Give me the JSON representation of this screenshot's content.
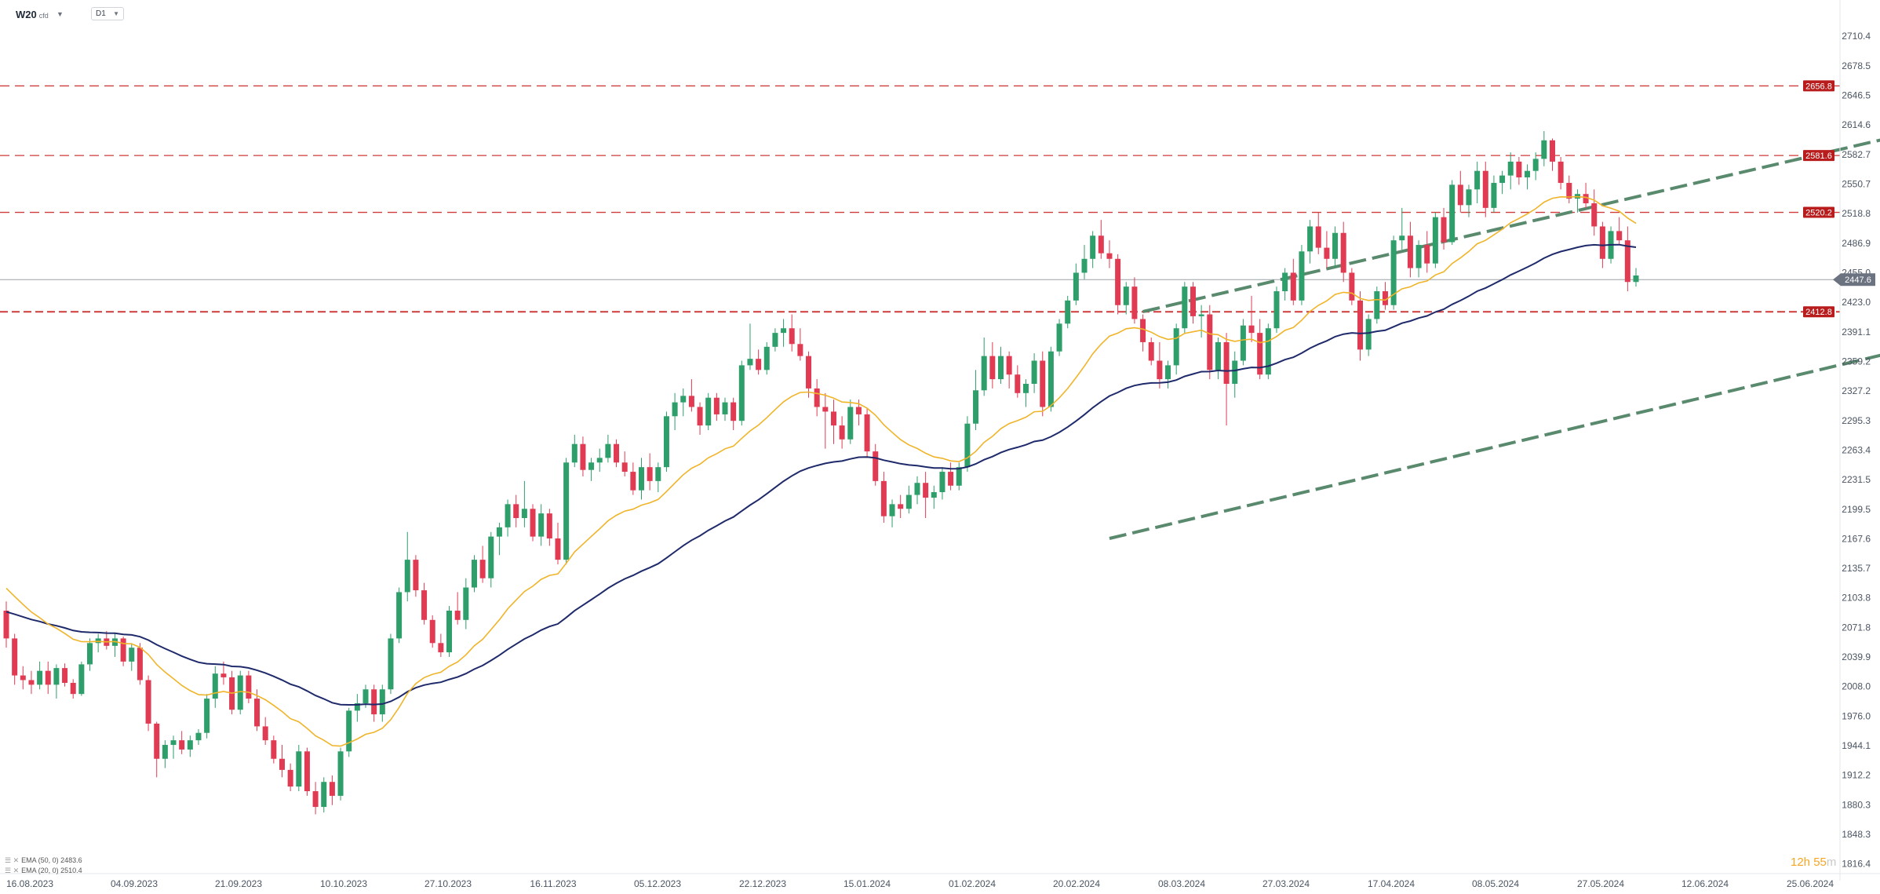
{
  "toolbar": {
    "symbol": "W20",
    "symbol_suffix": "cfd",
    "timeframe": "D1"
  },
  "legend": [
    {
      "label": "EMA (50, 0) 2483.6",
      "color": "#1f2a6b"
    },
    {
      "label": "EMA (20, 0) 2510.4",
      "color": "#f0b429"
    }
  ],
  "timer": {
    "hours": "12h 55",
    "minutes_suffix": "m"
  },
  "chart_data": {
    "type": "candlestick",
    "y_ticks": [
      "2710.4",
      "2678.5",
      "2646.5",
      "2614.6",
      "2582.7",
      "2550.7",
      "2518.8",
      "2486.9",
      "2455.0",
      "2423.0",
      "2391.1",
      "2359.2",
      "2327.2",
      "2295.3",
      "2263.4",
      "2231.5",
      "2199.5",
      "2167.6",
      "2135.7",
      "2103.8",
      "2071.8",
      "2039.9",
      "2008.0",
      "1976.0",
      "1944.1",
      "1912.2",
      "1880.3",
      "1848.3",
      "1816.4"
    ],
    "x_ticks": [
      "16.08.2023",
      "04.09.2023",
      "21.09.2023",
      "10.10.2023",
      "27.10.2023",
      "16.11.2023",
      "05.12.2023",
      "22.12.2023",
      "15.01.2024",
      "01.02.2024",
      "20.02.2024",
      "08.03.2024",
      "27.03.2024",
      "17.04.2024",
      "08.05.2024",
      "27.05.2024",
      "12.06.2024",
      "25.06.2024"
    ],
    "ylim": [
      1806,
      2736
    ],
    "horizontal_levels": [
      {
        "value": 2656.8,
        "label": "2656.8",
        "style": "dashed"
      },
      {
        "value": 2581.6,
        "label": "2581.6",
        "style": "dashed"
      },
      {
        "value": 2520.2,
        "label": "2520.2",
        "style": "dashed"
      },
      {
        "value": 2412.8,
        "label": "2412.8",
        "style": "dashed-heavy"
      }
    ],
    "current_price": {
      "value": 2447.6,
      "label": "2447.6"
    },
    "trend_channel": {
      "upper": [
        [
          136,
          2413
        ],
        [
          286,
          2728
        ]
      ],
      "lower": [
        [
          132,
          2168
        ],
        [
          292,
          2511
        ]
      ]
    },
    "highlight_box": {
      "x_from": 269,
      "x_to": 274.5,
      "y_from": 2430,
      "y_to": 2483
    },
    "candles_ohlc": [
      [
        2090,
        2100,
        2050,
        2060
      ],
      [
        2060,
        2065,
        2010,
        2020
      ],
      [
        2020,
        2030,
        2005,
        2015
      ],
      [
        2015,
        2025,
        2000,
        2010
      ],
      [
        2010,
        2035,
        2005,
        2025
      ],
      [
        2025,
        2035,
        2000,
        2010
      ],
      [
        2010,
        2032,
        1995,
        2028
      ],
      [
        2028,
        2033,
        2008,
        2012
      ],
      [
        2012,
        2016,
        1995,
        2000
      ],
      [
        2000,
        2035,
        1998,
        2032
      ],
      [
        2032,
        2060,
        2025,
        2055
      ],
      [
        2055,
        2065,
        2045,
        2060
      ],
      [
        2060,
        2068,
        2048,
        2052
      ],
      [
        2052,
        2065,
        2040,
        2060
      ],
      [
        2060,
        2062,
        2030,
        2035
      ],
      [
        2035,
        2055,
        2025,
        2050
      ],
      [
        2050,
        2055,
        2010,
        2015
      ],
      [
        2015,
        2020,
        1960,
        1968
      ],
      [
        1968,
        1970,
        1910,
        1930
      ],
      [
        1930,
        1950,
        1920,
        1945
      ],
      [
        1945,
        1955,
        1930,
        1950
      ],
      [
        1950,
        1960,
        1935,
        1940
      ],
      [
        1940,
        1955,
        1932,
        1950
      ],
      [
        1950,
        1962,
        1945,
        1958
      ],
      [
        1958,
        2000,
        1952,
        1995
      ],
      [
        1995,
        2030,
        1985,
        2022
      ],
      [
        2022,
        2035,
        2010,
        2018
      ],
      [
        2018,
        2025,
        1978,
        1983
      ],
      [
        1983,
        2025,
        1978,
        2020
      ],
      [
        2020,
        2025,
        1990,
        1995
      ],
      [
        1995,
        2005,
        1960,
        1965
      ],
      [
        1965,
        1975,
        1945,
        1950
      ],
      [
        1950,
        1955,
        1925,
        1930
      ],
      [
        1930,
        1945,
        1910,
        1918
      ],
      [
        1918,
        1925,
        1895,
        1900
      ],
      [
        1900,
        1945,
        1895,
        1938
      ],
      [
        1938,
        1942,
        1890,
        1895
      ],
      [
        1895,
        1905,
        1870,
        1878
      ],
      [
        1878,
        1910,
        1872,
        1905
      ],
      [
        1905,
        1912,
        1880,
        1890
      ],
      [
        1890,
        1942,
        1885,
        1938
      ],
      [
        1938,
        1985,
        1932,
        1982
      ],
      [
        1982,
        2000,
        1970,
        1990
      ],
      [
        1990,
        2010,
        1985,
        2005
      ],
      [
        2005,
        2010,
        1970,
        1978
      ],
      [
        1978,
        2010,
        1970,
        2005
      ],
      [
        2005,
        2065,
        2000,
        2060
      ],
      [
        2060,
        2115,
        2055,
        2110
      ],
      [
        2110,
        2175,
        2100,
        2145
      ],
      [
        2145,
        2150,
        2105,
        2112
      ],
      [
        2112,
        2120,
        2075,
        2080
      ],
      [
        2080,
        2085,
        2050,
        2055
      ],
      [
        2055,
        2065,
        2040,
        2045
      ],
      [
        2045,
        2095,
        2040,
        2090
      ],
      [
        2090,
        2110,
        2075,
        2080
      ],
      [
        2080,
        2125,
        2070,
        2115
      ],
      [
        2115,
        2150,
        2110,
        2145
      ],
      [
        2145,
        2160,
        2120,
        2125
      ],
      [
        2125,
        2175,
        2115,
        2170
      ],
      [
        2170,
        2185,
        2150,
        2180
      ],
      [
        2180,
        2210,
        2170,
        2205
      ],
      [
        2205,
        2215,
        2180,
        2190
      ],
      [
        2190,
        2230,
        2180,
        2200
      ],
      [
        2200,
        2205,
        2165,
        2170
      ],
      [
        2170,
        2205,
        2160,
        2195
      ],
      [
        2195,
        2200,
        2160,
        2168
      ],
      [
        2168,
        2185,
        2140,
        2145
      ],
      [
        2145,
        2255,
        2140,
        2250
      ],
      [
        2250,
        2280,
        2245,
        2270
      ],
      [
        2270,
        2278,
        2235,
        2242
      ],
      [
        2242,
        2255,
        2230,
        2250
      ],
      [
        2250,
        2265,
        2240,
        2255
      ],
      [
        2255,
        2280,
        2250,
        2270
      ],
      [
        2270,
        2275,
        2245,
        2250
      ],
      [
        2250,
        2262,
        2235,
        2240
      ],
      [
        2240,
        2250,
        2215,
        2220
      ],
      [
        2220,
        2255,
        2210,
        2245
      ],
      [
        2245,
        2260,
        2220,
        2230
      ],
      [
        2230,
        2250,
        2218,
        2245
      ],
      [
        2245,
        2305,
        2240,
        2300
      ],
      [
        2300,
        2325,
        2285,
        2315
      ],
      [
        2315,
        2330,
        2300,
        2322
      ],
      [
        2322,
        2340,
        2305,
        2310
      ],
      [
        2310,
        2315,
        2280,
        2290
      ],
      [
        2290,
        2325,
        2285,
        2320
      ],
      [
        2320,
        2325,
        2295,
        2302
      ],
      [
        2302,
        2320,
        2295,
        2315
      ],
      [
        2315,
        2320,
        2285,
        2295
      ],
      [
        2295,
        2360,
        2290,
        2355
      ],
      [
        2355,
        2400,
        2350,
        2362
      ],
      [
        2362,
        2372,
        2345,
        2350
      ],
      [
        2350,
        2380,
        2345,
        2375
      ],
      [
        2375,
        2395,
        2370,
        2390
      ],
      [
        2390,
        2405,
        2375,
        2395
      ],
      [
        2395,
        2410,
        2370,
        2378
      ],
      [
        2378,
        2395,
        2360,
        2365
      ],
      [
        2365,
        2370,
        2320,
        2330
      ],
      [
        2330,
        2340,
        2300,
        2310
      ],
      [
        2310,
        2325,
        2265,
        2305
      ],
      [
        2305,
        2318,
        2270,
        2290
      ],
      [
        2290,
        2300,
        2265,
        2275
      ],
      [
        2275,
        2318,
        2270,
        2310
      ],
      [
        2310,
        2318,
        2290,
        2302
      ],
      [
        2302,
        2308,
        2255,
        2262
      ],
      [
        2262,
        2270,
        2225,
        2230
      ],
      [
        2230,
        2240,
        2185,
        2192
      ],
      [
        2192,
        2210,
        2180,
        2205
      ],
      [
        2205,
        2215,
        2190,
        2200
      ],
      [
        2200,
        2225,
        2195,
        2215
      ],
      [
        2215,
        2235,
        2205,
        2228
      ],
      [
        2228,
        2240,
        2190,
        2212
      ],
      [
        2212,
        2225,
        2200,
        2218
      ],
      [
        2218,
        2245,
        2210,
        2240
      ],
      [
        2240,
        2250,
        2220,
        2225
      ],
      [
        2225,
        2250,
        2220,
        2245
      ],
      [
        2245,
        2300,
        2240,
        2292
      ],
      [
        2292,
        2350,
        2285,
        2328
      ],
      [
        2328,
        2385,
        2322,
        2365
      ],
      [
        2365,
        2380,
        2330,
        2340
      ],
      [
        2340,
        2375,
        2335,
        2365
      ],
      [
        2365,
        2370,
        2330,
        2345
      ],
      [
        2345,
        2355,
        2320,
        2325
      ],
      [
        2325,
        2340,
        2310,
        2335
      ],
      [
        2335,
        2368,
        2325,
        2360
      ],
      [
        2360,
        2370,
        2300,
        2310
      ],
      [
        2310,
        2375,
        2305,
        2370
      ],
      [
        2370,
        2405,
        2365,
        2400
      ],
      [
        2400,
        2430,
        2395,
        2425
      ],
      [
        2425,
        2465,
        2420,
        2455
      ],
      [
        2455,
        2485,
        2448,
        2470
      ],
      [
        2470,
        2500,
        2460,
        2495
      ],
      [
        2495,
        2512,
        2470,
        2476
      ],
      [
        2476,
        2490,
        2460,
        2470
      ],
      [
        2470,
        2475,
        2410,
        2420
      ],
      [
        2420,
        2445,
        2410,
        2440
      ],
      [
        2440,
        2450,
        2400,
        2405
      ],
      [
        2405,
        2410,
        2370,
        2380
      ],
      [
        2380,
        2385,
        2355,
        2360
      ],
      [
        2360,
        2380,
        2330,
        2340
      ],
      [
        2340,
        2360,
        2330,
        2355
      ],
      [
        2355,
        2400,
        2345,
        2395
      ],
      [
        2395,
        2445,
        2390,
        2440
      ],
      [
        2440,
        2445,
        2400,
        2408
      ],
      [
        2408,
        2420,
        2385,
        2410
      ],
      [
        2410,
        2420,
        2340,
        2350
      ],
      [
        2350,
        2385,
        2340,
        2380
      ],
      [
        2380,
        2390,
        2290,
        2335
      ],
      [
        2335,
        2370,
        2320,
        2360
      ],
      [
        2360,
        2405,
        2355,
        2398
      ],
      [
        2398,
        2430,
        2380,
        2390
      ],
      [
        2390,
        2405,
        2340,
        2345
      ],
      [
        2345,
        2400,
        2340,
        2395
      ],
      [
        2395,
        2440,
        2390,
        2435
      ],
      [
        2435,
        2460,
        2425,
        2455
      ],
      [
        2455,
        2470,
        2420,
        2425
      ],
      [
        2425,
        2485,
        2420,
        2478
      ],
      [
        2478,
        2512,
        2465,
        2505
      ],
      [
        2505,
        2520,
        2475,
        2482
      ],
      [
        2482,
        2500,
        2460,
        2470
      ],
      [
        2470,
        2505,
        2460,
        2498
      ],
      [
        2498,
        2510,
        2445,
        2455
      ],
      [
        2455,
        2460,
        2420,
        2425
      ],
      [
        2425,
        2435,
        2360,
        2372
      ],
      [
        2372,
        2410,
        2365,
        2405
      ],
      [
        2405,
        2440,
        2400,
        2435
      ],
      [
        2435,
        2445,
        2415,
        2420
      ],
      [
        2420,
        2495,
        2415,
        2490
      ],
      [
        2490,
        2525,
        2480,
        2495
      ],
      [
        2495,
        2510,
        2450,
        2460
      ],
      [
        2460,
        2490,
        2450,
        2485
      ],
      [
        2485,
        2500,
        2455,
        2465
      ],
      [
        2465,
        2520,
        2460,
        2515
      ],
      [
        2515,
        2525,
        2480,
        2488
      ],
      [
        2488,
        2555,
        2485,
        2550
      ],
      [
        2550,
        2565,
        2520,
        2528
      ],
      [
        2528,
        2550,
        2515,
        2545
      ],
      [
        2545,
        2575,
        2530,
        2565
      ],
      [
        2565,
        2575,
        2515,
        2525
      ],
      [
        2525,
        2560,
        2520,
        2552
      ],
      [
        2552,
        2565,
        2540,
        2560
      ],
      [
        2560,
        2585,
        2545,
        2575
      ],
      [
        2575,
        2580,
        2550,
        2558
      ],
      [
        2558,
        2572,
        2545,
        2565
      ],
      [
        2565,
        2585,
        2555,
        2578
      ],
      [
        2578,
        2608,
        2570,
        2598
      ],
      [
        2598,
        2600,
        2565,
        2575
      ],
      [
        2575,
        2580,
        2545,
        2552
      ],
      [
        2552,
        2560,
        2530,
        2535
      ],
      [
        2535,
        2545,
        2520,
        2540
      ],
      [
        2540,
        2552,
        2525,
        2530
      ],
      [
        2530,
        2545,
        2495,
        2505
      ],
      [
        2505,
        2510,
        2460,
        2470
      ],
      [
        2470,
        2505,
        2465,
        2500
      ],
      [
        2500,
        2515,
        2485,
        2490
      ],
      [
        2490,
        2505,
        2435,
        2445
      ],
      [
        2445,
        2460,
        2440,
        2452
      ]
    ]
  }
}
